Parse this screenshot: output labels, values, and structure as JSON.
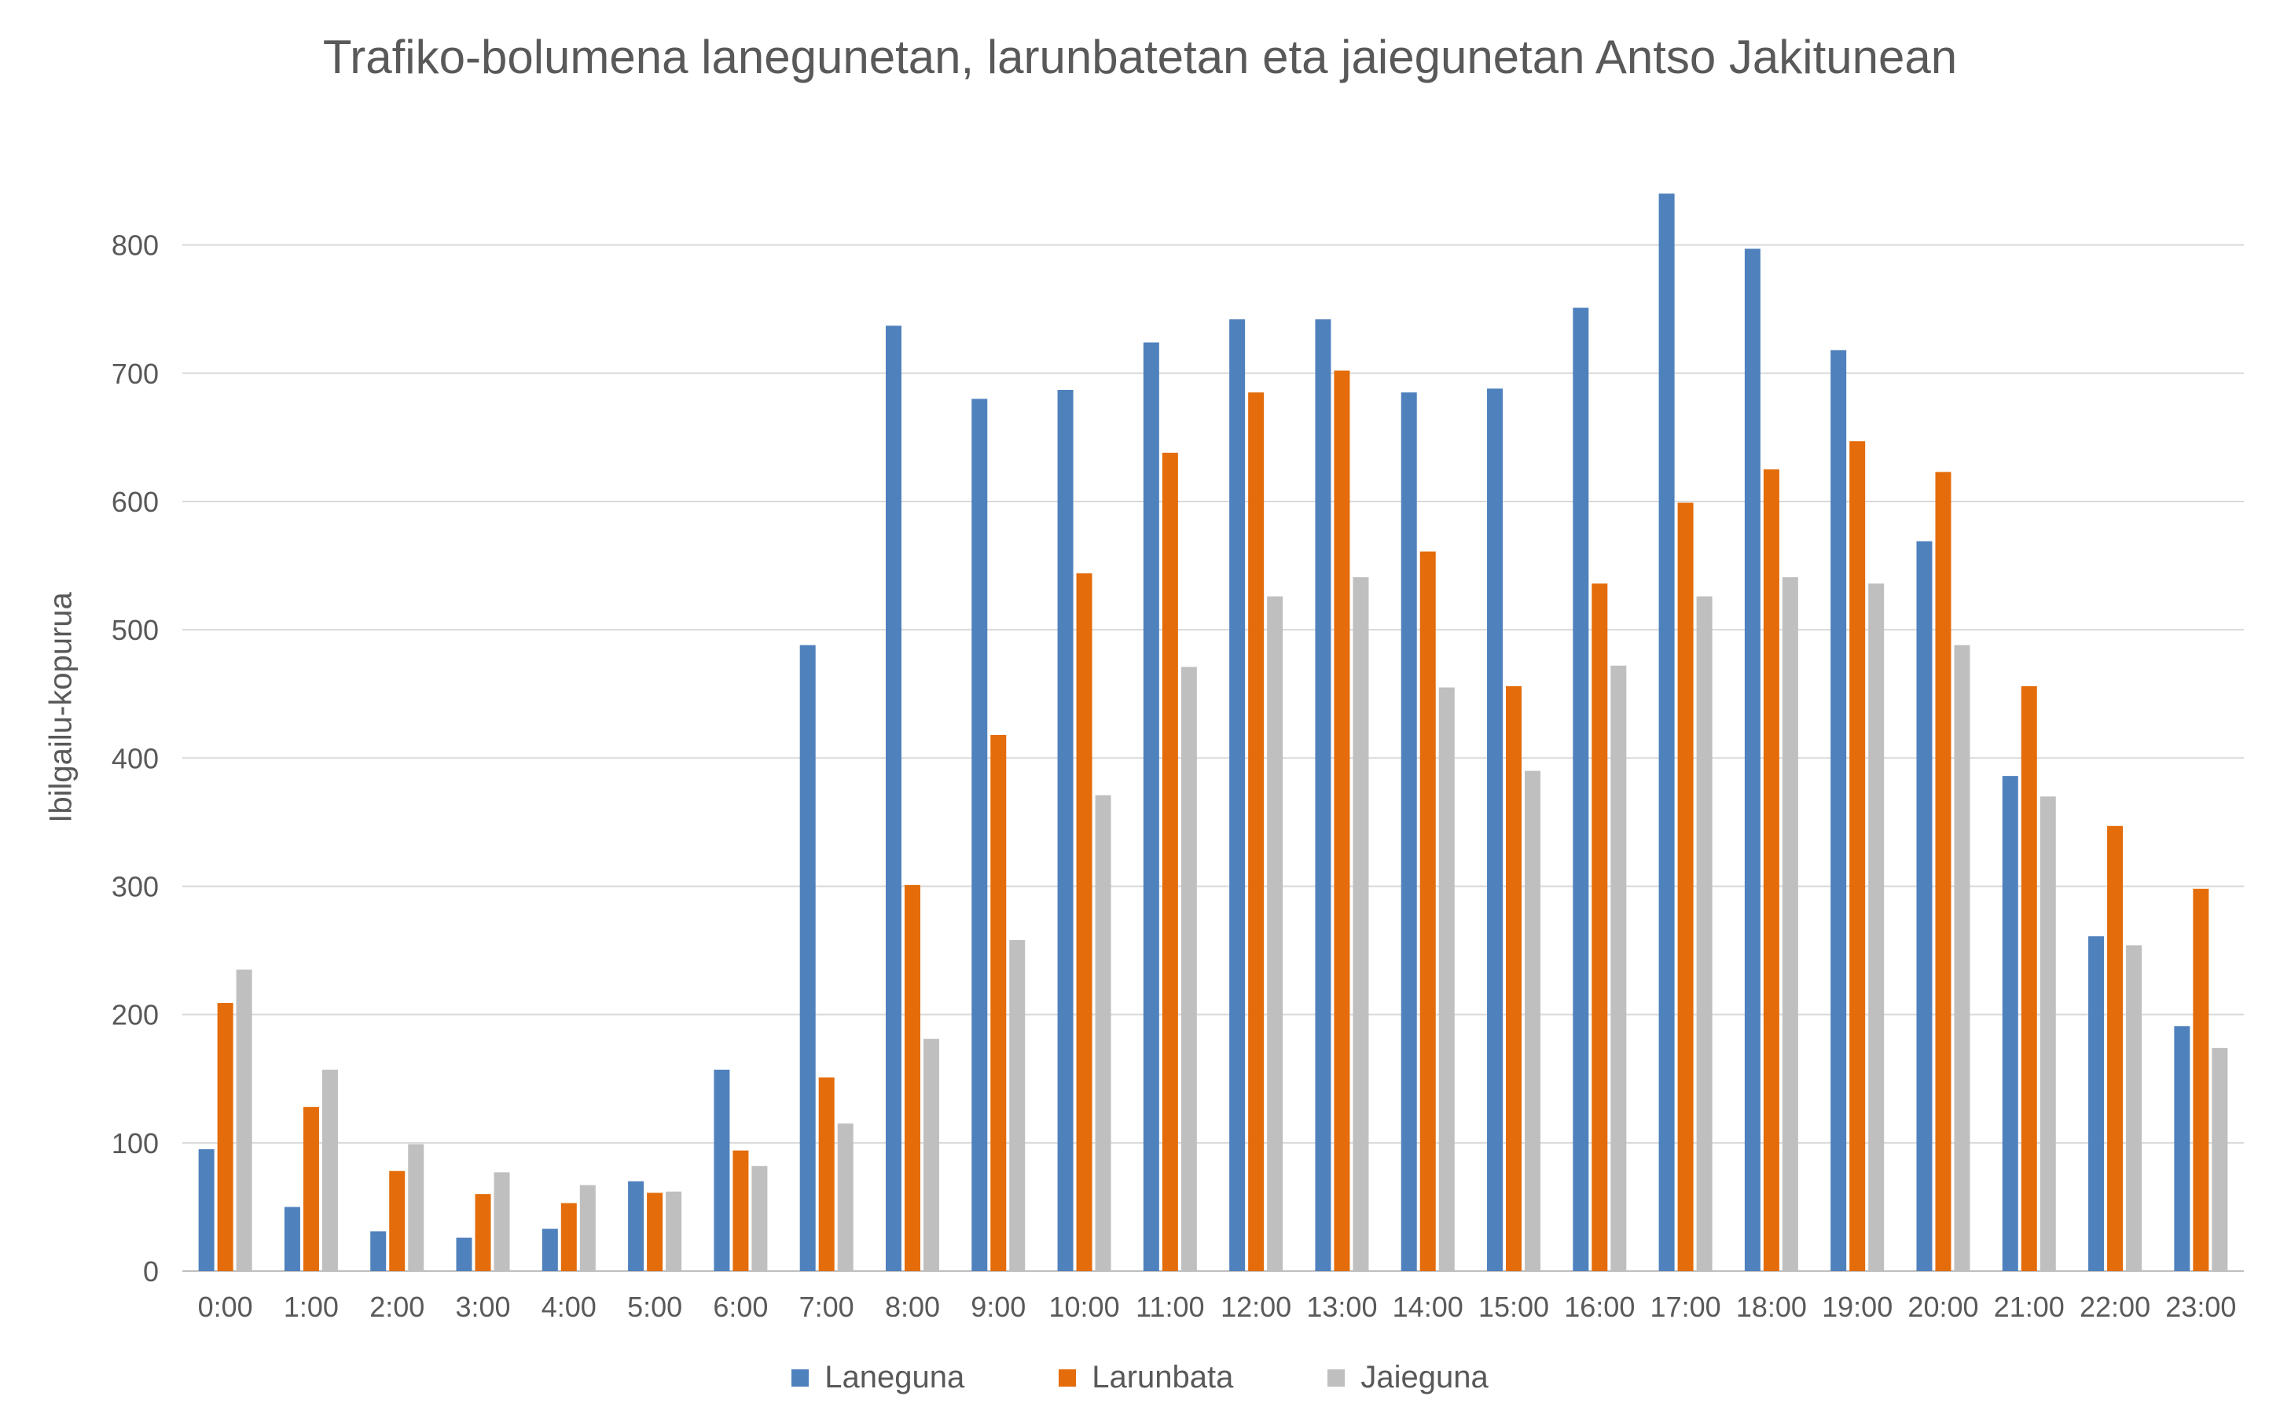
{
  "chart_data": {
    "type": "bar",
    "title": "Trafiko-bolumena lanegunetan, larunbatetan eta jaiegunetan Antso Jakitunean",
    "xlabel": "",
    "ylabel": "Ibilgailu-kopurua",
    "ylim": [
      0,
      850
    ],
    "yticks": [
      "0",
      "100",
      "200",
      "300",
      "400",
      "500",
      "600",
      "700",
      "800"
    ],
    "grid": true,
    "legend_position": "bottom",
    "categories": [
      "0:00",
      "1:00",
      "2:00",
      "3:00",
      "4:00",
      "5:00",
      "6:00",
      "7:00",
      "8:00",
      "9:00",
      "10:00",
      "11:00",
      "12:00",
      "13:00",
      "14:00",
      "15:00",
      "16:00",
      "17:00",
      "18:00",
      "19:00",
      "20:00",
      "21:00",
      "22:00",
      "23:00"
    ],
    "series": [
      {
        "name": "Laneguna",
        "color": "#4f81bd",
        "values": [
          95,
          50,
          31,
          26,
          33,
          70,
          157,
          488,
          737,
          680,
          687,
          724,
          742,
          742,
          685,
          688,
          751,
          840,
          797,
          718,
          569,
          386,
          261,
          191
        ]
      },
      {
        "name": "Larunbata",
        "color": "#e46c0a",
        "values": [
          209,
          128,
          78,
          60,
          53,
          61,
          94,
          151,
          301,
          418,
          544,
          638,
          685,
          702,
          561,
          456,
          536,
          599,
          625,
          647,
          623,
          456,
          347,
          298
        ]
      },
      {
        "name": "Jaieguna",
        "color": "#bfbfbf",
        "values": [
          235,
          157,
          99,
          77,
          67,
          62,
          82,
          115,
          181,
          258,
          371,
          471,
          526,
          541,
          455,
          390,
          472,
          526,
          541,
          536,
          488,
          370,
          254,
          174
        ]
      }
    ]
  }
}
